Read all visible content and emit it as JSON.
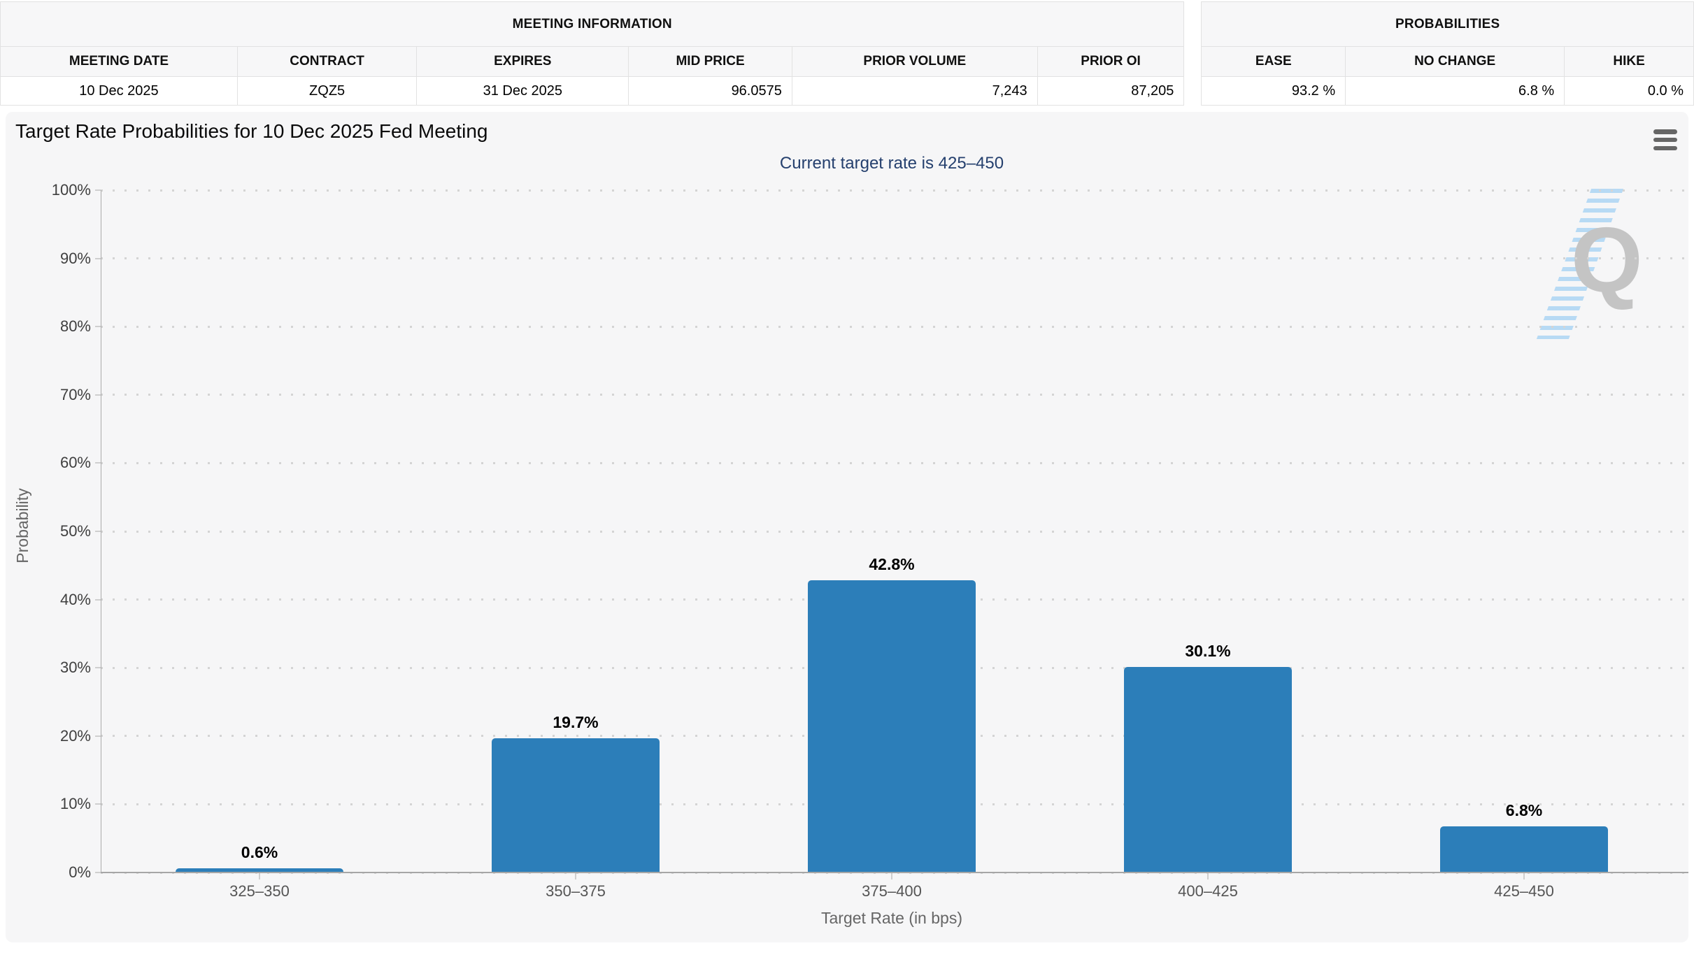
{
  "tables": {
    "meeting_info": {
      "title": "MEETING INFORMATION",
      "columns": [
        {
          "label": "MEETING DATE",
          "value": "10 Dec 2025"
        },
        {
          "label": "CONTRACT",
          "value": "ZQZ5"
        },
        {
          "label": "EXPIRES",
          "value": "31 Dec 2025"
        },
        {
          "label": "MID PRICE",
          "value": "96.0575"
        },
        {
          "label": "PRIOR VOLUME",
          "value": "7,243"
        },
        {
          "label": "PRIOR OI",
          "value": "87,205"
        }
      ]
    },
    "probabilities": {
      "title": "PROBABILITIES",
      "columns": [
        {
          "label": "EASE",
          "value": "93.2 %"
        },
        {
          "label": "NO CHANGE",
          "value": "6.8 %"
        },
        {
          "label": "HIKE",
          "value": "0.0 %"
        }
      ]
    }
  },
  "chart": {
    "menu_icon": "hamburger-menu-icon",
    "watermark_letter": "Q"
  },
  "chart_data": {
    "type": "bar",
    "title": "Target Rate Probabilities for 10 Dec 2025 Fed Meeting",
    "subtitle": "Current target rate is 425–450",
    "categories": [
      "325–350",
      "350–375",
      "375–400",
      "400–425",
      "425–450"
    ],
    "values": [
      0.6,
      19.7,
      42.8,
      30.1,
      6.8
    ],
    "labels": [
      "0.6%",
      "19.7%",
      "42.8%",
      "30.1%",
      "6.8%"
    ],
    "xlabel": "Target Rate (in bps)",
    "ylabel": "Probability",
    "ylim": [
      0,
      100
    ],
    "ytick_step": 10,
    "ytick_suffix": "%",
    "grid": "dotted-horizontal",
    "legend": "none",
    "bar_color": "#2c7eb9",
    "background_color": "#f6f6f7",
    "subtitle_color": "#25406e"
  }
}
